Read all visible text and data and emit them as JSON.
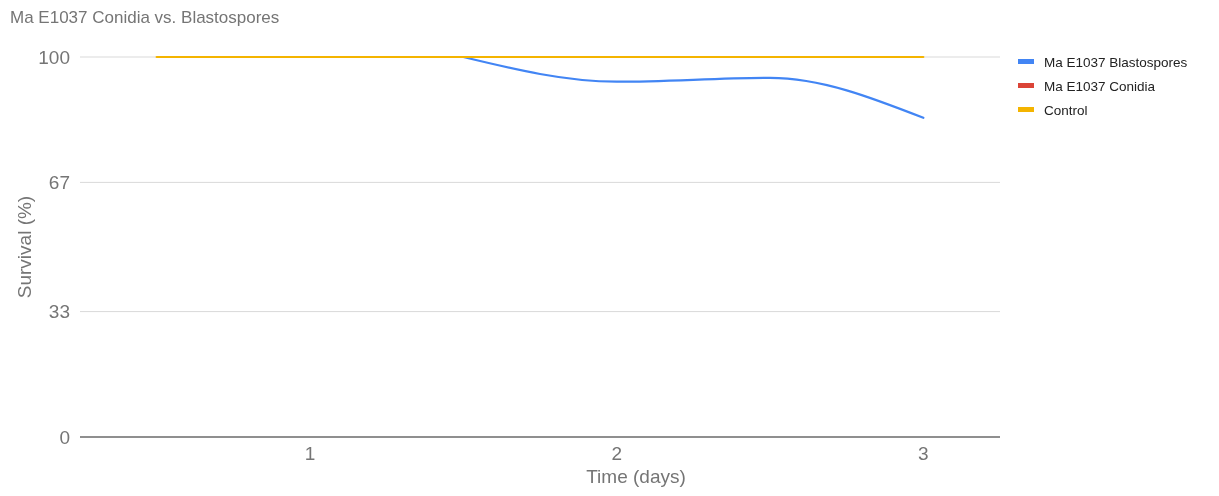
{
  "chart_data": {
    "type": "line",
    "title": "Ma E1037 Conidia vs. Blastospores",
    "xlabel": "Time (days)",
    "ylabel": "Survival (%)",
    "x": [
      0.5,
      1,
      1.5,
      2,
      2.5,
      3
    ],
    "xlim": [
      0.25,
      3.25
    ],
    "xticks": [
      1,
      2,
      3
    ],
    "ylim": [
      0,
      100
    ],
    "yticks": [
      0,
      33,
      67,
      100
    ],
    "grid": "y",
    "legend": "right",
    "line_style": "solid",
    "series": [
      {
        "name": "Ma E1037 Blastospores",
        "color": "#4285f4",
        "values": [
          null,
          null,
          100,
          93.5,
          94.5,
          84
        ]
      },
      {
        "name": "Ma E1037 Conidia",
        "color": "#db4437",
        "values": [
          null,
          null,
          null,
          null,
          null,
          null
        ]
      },
      {
        "name": "Control",
        "color": "#f4b400",
        "values": [
          100,
          100,
          100,
          100,
          100,
          100
        ]
      }
    ]
  }
}
